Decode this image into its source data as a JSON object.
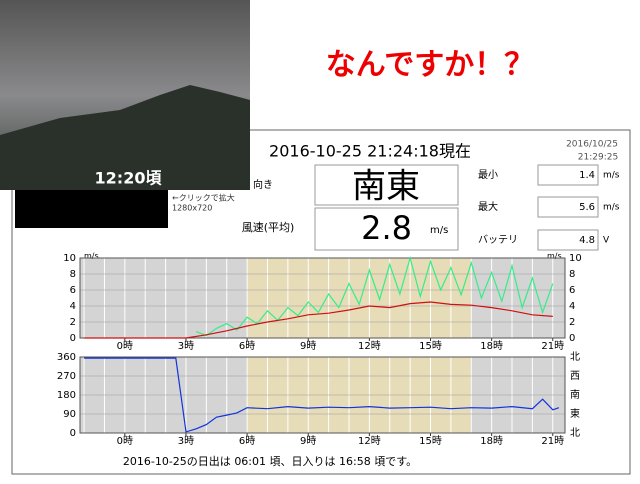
{
  "banner": "なんですか！？",
  "webcam": {
    "time": "12:20頃",
    "hint": "←クリックで拡大",
    "size": "1280x720"
  },
  "panel": {
    "now": "2016-10-25 21:24:18現在",
    "stamp_date": "2016/10/25",
    "stamp_time": "21:29:25",
    "direction": {
      "label": "向き",
      "value": "南東"
    },
    "speed": {
      "label": "風速(平均)",
      "value": 2.8,
      "unit": "m/s"
    },
    "min": {
      "label": "最小",
      "value": 1.4,
      "unit": "m/s"
    },
    "max": {
      "label": "最大",
      "value": 5.6,
      "unit": "m/s"
    },
    "battery": {
      "label": "バッテリ",
      "value": 4.8,
      "unit": "V"
    }
  },
  "footer": {
    "prefix": "2016-10-25の日出は ",
    "sunrise": "06:01",
    "middle": " 頃、日入りは ",
    "sunset": "16:58",
    "suffix": " 頃です。"
  },
  "chart_data": [
    {
      "type": "line",
      "y_label": "m/s",
      "xlim": [
        -2.2,
        21.6
      ],
      "ylim": [
        0,
        10
      ],
      "yticks": [
        0,
        2,
        4,
        6,
        8,
        10
      ],
      "xticks": [
        {
          "value": 0,
          "label": "0時"
        },
        {
          "value": 3,
          "label": "3時"
        },
        {
          "value": 6,
          "label": "6時"
        },
        {
          "value": 9,
          "label": "9時"
        },
        {
          "value": 12,
          "label": "12時"
        },
        {
          "value": 15,
          "label": "15時"
        },
        {
          "value": 18,
          "label": "18時"
        },
        {
          "value": 21,
          "label": "21時"
        }
      ],
      "series": [
        {
          "color": "#33ee88",
          "x": [
            3.5,
            4,
            4.5,
            5,
            5.5,
            6,
            6.5,
            7,
            7.5,
            8,
            8.5,
            9,
            9.5,
            10,
            10.5,
            11,
            11.5,
            12,
            12.5,
            13,
            13.5,
            14,
            14.5,
            15,
            15.5,
            16,
            16.5,
            17,
            17.5,
            18,
            18.5,
            19,
            19.5,
            20,
            20.5,
            21
          ],
          "values": [
            0.8,
            0.3,
            1.2,
            1.8,
            1.0,
            2.6,
            1.8,
            3.4,
            2.2,
            3.8,
            2.8,
            4.5,
            3.2,
            5.5,
            3.8,
            6.8,
            4.2,
            8.5,
            4.8,
            9.2,
            5.5,
            10,
            5.2,
            9.6,
            6.0,
            8.8,
            5.4,
            9.4,
            5.0,
            8.2,
            4.6,
            9.0,
            3.8,
            7.5,
            3.2,
            6.8
          ]
        },
        {
          "color": "#cc1111",
          "x": [
            -2,
            3,
            4,
            5,
            6,
            7,
            8,
            9,
            10,
            11,
            12,
            13,
            14,
            15,
            16,
            17,
            18,
            19,
            20,
            21
          ],
          "values": [
            0,
            0,
            0.4,
            0.9,
            1.5,
            2,
            2.4,
            2.9,
            3.1,
            3.5,
            4,
            3.8,
            4.3,
            4.5,
            4.2,
            4.1,
            3.8,
            3.4,
            2.9,
            2.7
          ]
        }
      ]
    },
    {
      "type": "line",
      "xlim": [
        -2.2,
        21.6
      ],
      "ylim": [
        0,
        360
      ],
      "yticks": [
        0,
        90,
        180,
        270,
        360
      ],
      "y2ticks": [
        {
          "value": 0,
          "label": "北"
        },
        {
          "value": 90,
          "label": "東"
        },
        {
          "value": 180,
          "label": "南"
        },
        {
          "value": 270,
          "label": "西"
        },
        {
          "value": 360,
          "label": "北"
        }
      ],
      "xticks": [
        {
          "value": 0,
          "label": "0時"
        },
        {
          "value": 3,
          "label": "3時"
        },
        {
          "value": 6,
          "label": "6時"
        },
        {
          "value": 9,
          "label": "9時"
        },
        {
          "value": 12,
          "label": "12時"
        },
        {
          "value": 15,
          "label": "15時"
        },
        {
          "value": 18,
          "label": "18時"
        },
        {
          "value": 21,
          "label": "21時"
        }
      ],
      "series": [
        {
          "color": "#1133dd",
          "x": [
            -2,
            2.5,
            3,
            3.5,
            4,
            4.5,
            5,
            5.5,
            6,
            7,
            8,
            9,
            10,
            11,
            12,
            13,
            14,
            15,
            16,
            17,
            18,
            19,
            20,
            20.5,
            21,
            21.3
          ],
          "values": [
            355,
            355,
            5,
            20,
            40,
            75,
            85,
            95,
            120,
            115,
            125,
            118,
            122,
            120,
            125,
            118,
            120,
            122,
            115,
            120,
            118,
            125,
            115,
            160,
            110,
            120
          ]
        }
      ]
    }
  ]
}
